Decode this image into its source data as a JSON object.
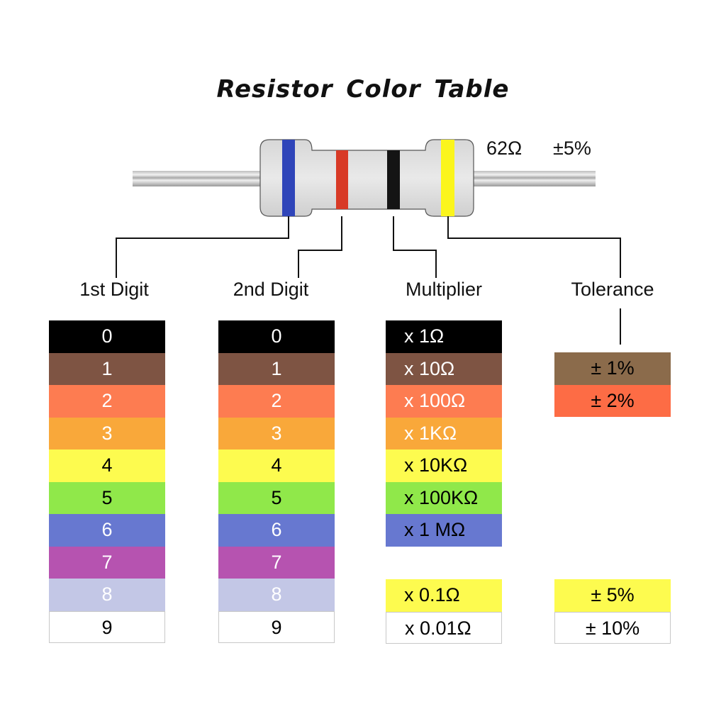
{
  "title": "Resistor Color Table",
  "example": {
    "resistance": "62Ω",
    "tolerance": "±5%",
    "bands": [
      {
        "role": "1st Digit",
        "color": "#2f45b9"
      },
      {
        "role": "2nd Digit",
        "color": "#d83a26"
      },
      {
        "role": "Multiplier",
        "color": "#141414"
      },
      {
        "role": "Tolerance",
        "color": "#fbf51c"
      }
    ]
  },
  "columns": {
    "first_digit": {
      "label": "1st Digit",
      "rows": [
        {
          "text": "0",
          "bg": "#000000",
          "fg": "#ffffff"
        },
        {
          "text": "1",
          "bg": "#7e5443",
          "fg": "#ffffff"
        },
        {
          "text": "2",
          "bg": "#fd7c51",
          "fg": "#ffffff"
        },
        {
          "text": "3",
          "bg": "#f9a83a",
          "fg": "#ffffff"
        },
        {
          "text": "4",
          "bg": "#fdfb4f",
          "fg": "#000000"
        },
        {
          "text": "5",
          "bg": "#90e84a",
          "fg": "#000000"
        },
        {
          "text": "6",
          "bg": "#6778d0",
          "fg": "#ffffff"
        },
        {
          "text": "7",
          "bg": "#b653b0",
          "fg": "#ffffff"
        },
        {
          "text": "8",
          "bg": "#c3c7e6",
          "fg": "#ffffff"
        },
        {
          "text": "9",
          "bg": "#ffffff",
          "fg": "#000000"
        }
      ]
    },
    "second_digit": {
      "label": "2nd Digit",
      "rows": [
        {
          "text": "0",
          "bg": "#000000",
          "fg": "#ffffff"
        },
        {
          "text": "1",
          "bg": "#7e5443",
          "fg": "#ffffff"
        },
        {
          "text": "2",
          "bg": "#fd7c51",
          "fg": "#ffffff"
        },
        {
          "text": "3",
          "bg": "#f9a83a",
          "fg": "#ffffff"
        },
        {
          "text": "4",
          "bg": "#fdfb4f",
          "fg": "#000000"
        },
        {
          "text": "5",
          "bg": "#90e84a",
          "fg": "#000000"
        },
        {
          "text": "6",
          "bg": "#6778d0",
          "fg": "#ffffff"
        },
        {
          "text": "7",
          "bg": "#b653b0",
          "fg": "#ffffff"
        },
        {
          "text": "8",
          "bg": "#c3c7e6",
          "fg": "#ffffff"
        },
        {
          "text": "9",
          "bg": "#ffffff",
          "fg": "#000000"
        }
      ]
    },
    "multiplier": {
      "label": "Multiplier",
      "rows": [
        {
          "text": "x 1Ω",
          "bg": "#000000",
          "fg": "#ffffff"
        },
        {
          "text": "x 10Ω",
          "bg": "#7e5443",
          "fg": "#ffffff"
        },
        {
          "text": "x 100Ω",
          "bg": "#fd7c51",
          "fg": "#ffffff"
        },
        {
          "text": "x 1KΩ",
          "bg": "#f9a83a",
          "fg": "#ffffff"
        },
        {
          "text": "x 10KΩ",
          "bg": "#fdfb4f",
          "fg": "#000000"
        },
        {
          "text": "x 100KΩ",
          "bg": "#90e84a",
          "fg": "#000000"
        },
        {
          "text": "x 1 MΩ",
          "bg": "#6778d0",
          "fg": "#000000"
        }
      ],
      "special_rows": [
        {
          "text": "x 0.1Ω",
          "bg": "#fdfb4f",
          "fg": "#000000"
        },
        {
          "text": "x 0.01Ω",
          "bg": "#ffffff",
          "fg": "#000000"
        }
      ]
    },
    "tolerance": {
      "label": "Tolerance",
      "rows": [
        {
          "text": "± 1%",
          "bg": "#8b6b4b",
          "fg": "#000000"
        },
        {
          "text": "± 2%",
          "bg": "#fd6c45",
          "fg": "#000000"
        }
      ],
      "special_rows": [
        {
          "text": "± 5%",
          "bg": "#fdfb4f",
          "fg": "#000000"
        },
        {
          "text": "± 10%",
          "bg": "#ffffff",
          "fg": "#000000"
        }
      ]
    }
  }
}
